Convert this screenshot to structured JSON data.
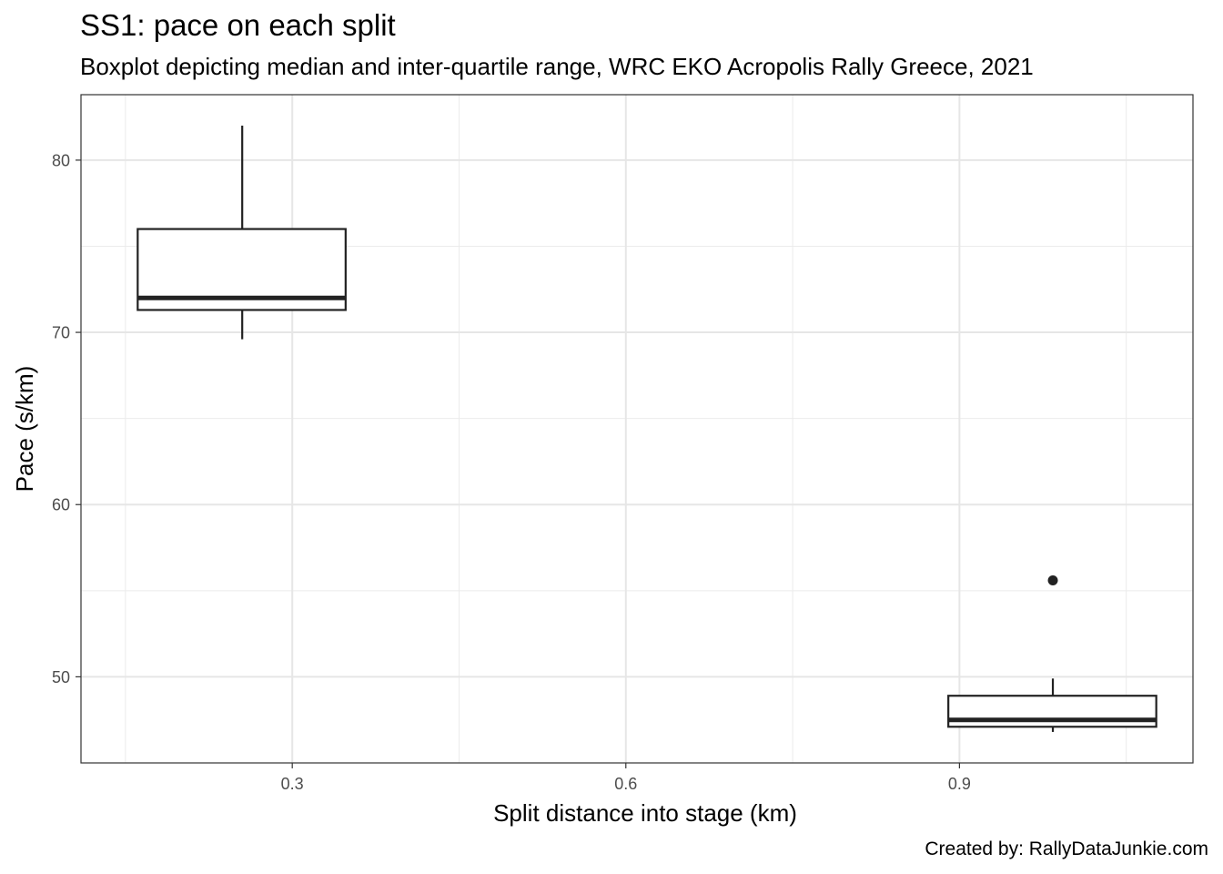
{
  "chart_data": {
    "type": "boxplot",
    "title": "SS1: pace on each split",
    "subtitle": "Boxplot depicting median and inter-quartile range, WRC EKO Acropolis Rally Greece, 2021",
    "caption": "Created by: RallyDataJunkie.com",
    "xlabel": "Split distance into stage (km)",
    "ylabel": "Pace (s/km)",
    "xlim": [
      0.11,
      1.11
    ],
    "ylim": [
      45.0,
      83.8
    ],
    "x_ticks": [
      0.3,
      0.6,
      0.9
    ],
    "x_tick_labels": [
      "0.3",
      "0.6",
      "0.9"
    ],
    "y_ticks": [
      50,
      60,
      70,
      80
    ],
    "y_tick_labels": [
      "50",
      "60",
      "70",
      "80"
    ],
    "grid": true,
    "theme": "black-and-white",
    "box_color": "#222222",
    "boxes": [
      {
        "x": 0.255,
        "x_min": 0.161,
        "x_max": 0.348,
        "whisker_low": 69.6,
        "q1": 71.3,
        "median": 72.0,
        "q3": 76.0,
        "whisker_high": 82.0,
        "outliers": []
      },
      {
        "x": 0.984,
        "x_min": 0.89,
        "x_max": 1.077,
        "whisker_low": 46.8,
        "q1": 47.1,
        "median": 47.5,
        "q3": 48.9,
        "whisker_high": 49.9,
        "outliers": [
          55.6
        ]
      }
    ]
  }
}
